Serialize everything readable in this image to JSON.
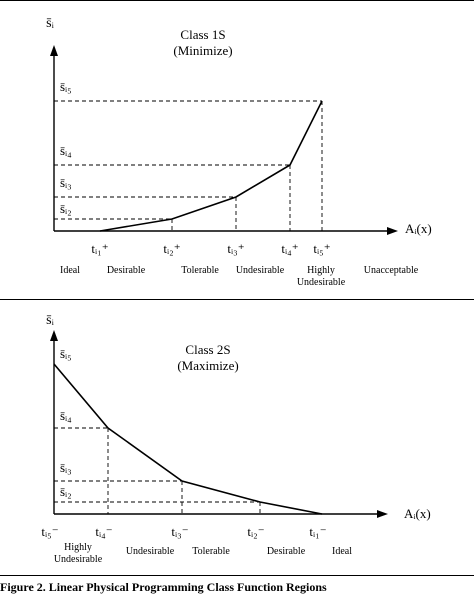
{
  "caption": "Figure 2.  Linear Physical Programming Class Function Regions",
  "panels": [
    {
      "title": "Class 1S",
      "subtitle": "(Minimize)",
      "y_axis_label": "s̄ᵢ",
      "x_axis_label": "Aᵢ(x)",
      "levels": [
        {
          "label": "s̄ᵢ₅"
        },
        {
          "label": "s̄ᵢ₄"
        },
        {
          "label": "s̄ᵢ₃"
        },
        {
          "label": "s̄ᵢ₂"
        }
      ],
      "ticks": [
        {
          "label": "tᵢ₁⁺"
        },
        {
          "label": "tᵢ₂⁺"
        },
        {
          "label": "tᵢ₃⁺"
        },
        {
          "label": "tᵢ₄⁺"
        },
        {
          "label": "tᵢ₅⁺"
        }
      ],
      "regions": [
        "Ideal",
        "Desirable",
        "Tolerable",
        "Undesirable",
        "Highly",
        "Undesirable",
        "Unacceptable"
      ]
    },
    {
      "title": "Class 2S",
      "subtitle": "(Maximize)",
      "y_axis_label": "s̄ᵢ",
      "x_axis_label": "Aᵢ(x)",
      "levels": [
        {
          "label": "s̄ᵢ₅"
        },
        {
          "label": "s̄ᵢ₄"
        },
        {
          "label": "s̄ᵢ₃"
        },
        {
          "label": "s̄ᵢ₂"
        }
      ],
      "ticks": [
        {
          "label": "tᵢ₅⁻"
        },
        {
          "label": "tᵢ₄⁻"
        },
        {
          "label": "tᵢ₃⁻"
        },
        {
          "label": "tᵢ₂⁻"
        },
        {
          "label": "tᵢ₁⁻"
        }
      ],
      "regions": [
        "Highly",
        "Undesirable",
        "Undesirable",
        "Tolerable",
        "Desirable",
        "Ideal"
      ]
    }
  ]
}
